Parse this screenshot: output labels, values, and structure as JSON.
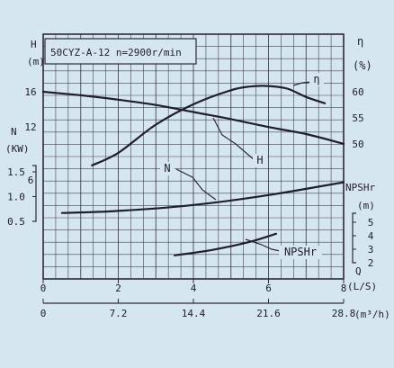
{
  "chart_data": {
    "type": "line",
    "title": "50CYZ-A-12 n=2900r/min",
    "x_axis_ls": {
      "label": "Q\n(L/S)",
      "ticks": [
        "0",
        "2",
        "4",
        "6",
        "8"
      ],
      "range": [
        0,
        8
      ]
    },
    "x_axis_m3h": {
      "label": "(m³/h)",
      "ticks": [
        "0",
        "7.2",
        "14.4",
        "21.6",
        "28.8"
      ]
    },
    "left_axis_H": {
      "label": "H\n(m)",
      "ticks": [
        "16",
        "12",
        "6"
      ]
    },
    "left_axis_N": {
      "label": "N\n(KW)",
      "ticks": [
        "1.5",
        "1.0",
        "0.5"
      ]
    },
    "right_axis_eta": {
      "label": "η\n(%)",
      "ticks": [
        "60",
        "55",
        "50"
      ]
    },
    "right_axis_npsh": {
      "label": "NPSHr\n(m)",
      "ticks": [
        "5",
        "4",
        "3",
        "2"
      ]
    },
    "series": [
      {
        "name": "H",
        "x": [
          0,
          1,
          2,
          3,
          4,
          5,
          6,
          7,
          8
        ],
        "y": [
          16,
          15.6,
          15.1,
          14.5,
          13.7,
          12.9,
          12.0,
          11.2,
          10.1
        ]
      },
      {
        "name": "η",
        "x": [
          1.3,
          2,
          3,
          4,
          5,
          5.5,
          6,
          6.5,
          7,
          7.5
        ],
        "y": [
          45.9,
          48.3,
          53.7,
          57.6,
          60.3,
          61.0,
          61.1,
          60.6,
          59.0,
          57.8
        ]
      },
      {
        "name": "N",
        "x": [
          0.5,
          2,
          4,
          6,
          8
        ],
        "y": [
          0.67,
          0.71,
          0.83,
          1.03,
          1.29
        ]
      },
      {
        "name": "NPSHr",
        "x": [
          3.5,
          4.5,
          5.5,
          6.2
        ],
        "y": [
          2.55,
          2.95,
          3.55,
          4.15
        ]
      }
    ],
    "annotations": [
      "H",
      "N",
      "η",
      "NPSHr"
    ],
    "grid": true
  }
}
